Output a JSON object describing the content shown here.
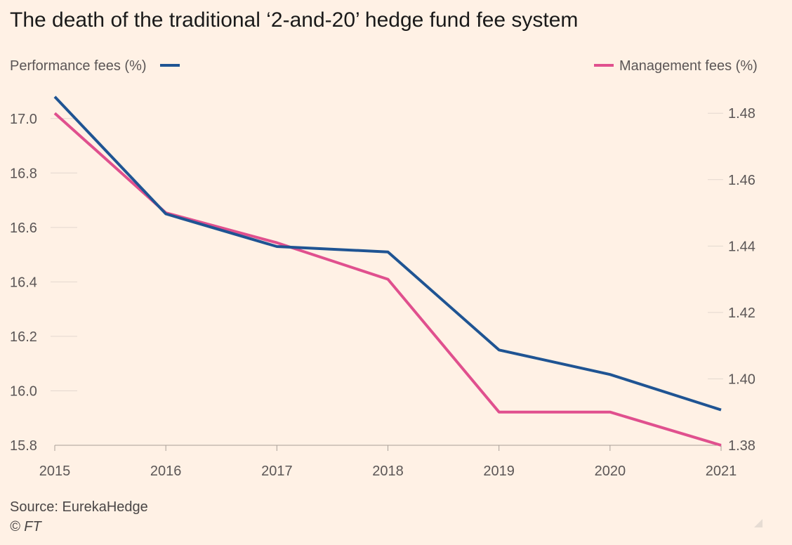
{
  "title": "The death of the traditional ‘2-and-20’ hedge fund fee system",
  "source": "Source: EurekaHedge",
  "copyright": "© FT",
  "colors": {
    "background": "#fff1e5",
    "performance": "#1f5493",
    "management": "#e0508e",
    "grid": "#e3d8cf",
    "text": "#5b5656"
  },
  "chart_data": {
    "type": "line",
    "x": [
      "2015",
      "2016",
      "2017",
      "2018",
      "2019",
      "2020",
      "2021"
    ],
    "series": [
      {
        "name": "Performance fees (%)",
        "axis": "left",
        "color": "#1f5493",
        "values": [
          17.08,
          16.65,
          16.53,
          16.51,
          16.15,
          16.06,
          15.93
        ]
      },
      {
        "name": "Management fees (%)",
        "axis": "right",
        "color": "#e0508e",
        "values": [
          1.48,
          1.45,
          1.441,
          1.43,
          1.39,
          1.39,
          1.38
        ]
      }
    ],
    "y_left": {
      "ticks": [
        "15.8",
        "16.0",
        "16.2",
        "16.4",
        "16.6",
        "16.8",
        "17.0"
      ],
      "range": [
        15.8,
        17.1
      ]
    },
    "y_right": {
      "ticks": [
        "1.38",
        "1.40",
        "1.42",
        "1.44",
        "1.46",
        "1.48"
      ],
      "range": [
        1.38,
        1.4866
      ]
    },
    "grid": true,
    "legend": [
      "top-left",
      "top-right"
    ]
  }
}
